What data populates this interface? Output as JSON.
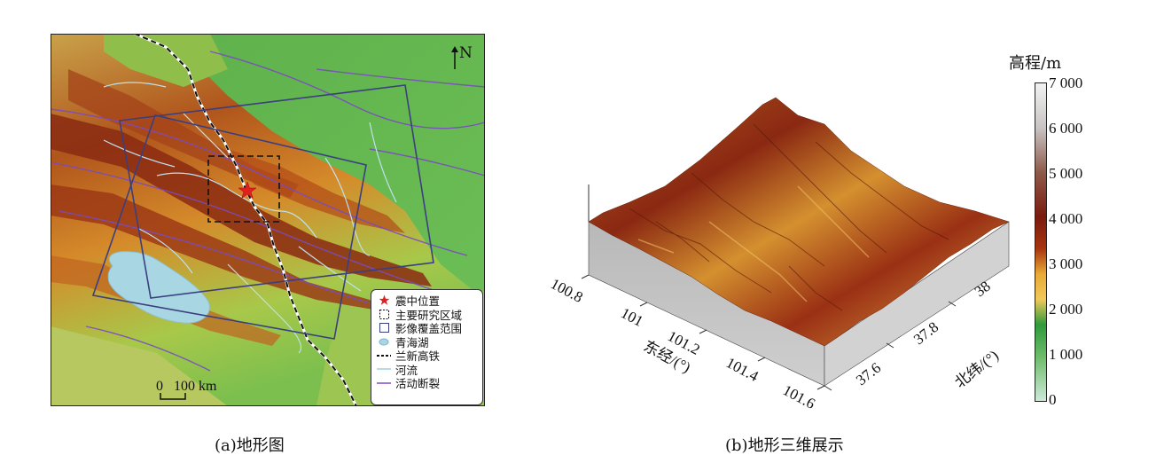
{
  "panel_a": {
    "caption": "(a)地形图",
    "north_label": "N",
    "scale": {
      "label": "0   100 km"
    },
    "legend": [
      {
        "icon": "star-icon",
        "label": "震中位置"
      },
      {
        "icon": "dashed-square-icon",
        "label": "主要研究区域"
      },
      {
        "icon": "square-icon",
        "label": "影像覆盖范围"
      },
      {
        "icon": "lake-icon",
        "label": "青海湖"
      },
      {
        "icon": "dashed-line-icon",
        "label": "兰新高铁"
      },
      {
        "icon": "river-line-icon",
        "label": "河流"
      },
      {
        "icon": "fault-line-icon",
        "label": "活动断裂"
      }
    ]
  },
  "panel_b": {
    "caption": "(b)地形三维展示",
    "x_axis": {
      "label": "东经/(°)",
      "ticks": [
        "100.8",
        "101",
        "101.2",
        "101.4",
        "101.6"
      ]
    },
    "y_axis": {
      "label": "北纬/(°)",
      "ticks": [
        "37.6",
        "37.8",
        "38"
      ]
    },
    "colorbar": {
      "title": "高程/m",
      "ticks": [
        "7 000",
        "6 000",
        "5 000",
        "4 000",
        "3 000",
        "2 000",
        "1 000",
        "0"
      ],
      "colors": [
        "#f2f2f2",
        "#c9c4c4",
        "#8e5a4a",
        "#7a1b0e",
        "#a8340e",
        "#e8aa35",
        "#f0c85a",
        "#2f9a3c",
        "#6dbb6a",
        "#cde9d8"
      ]
    }
  }
}
